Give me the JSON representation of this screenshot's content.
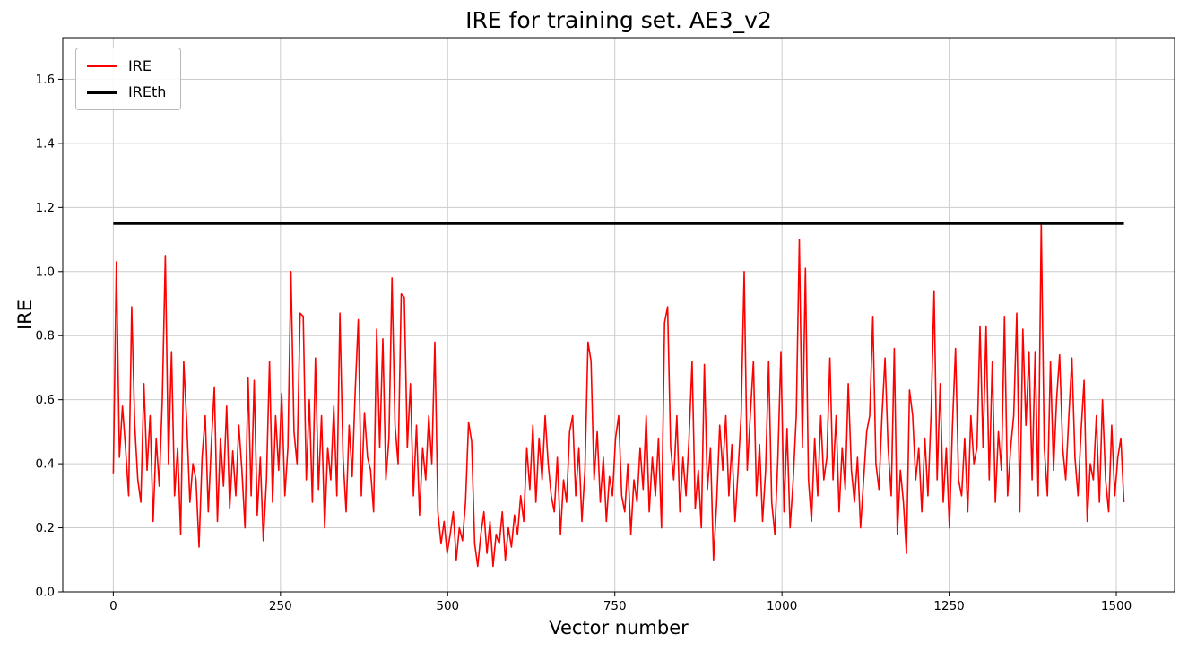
{
  "figure": {
    "background": "#ffffff"
  },
  "chart_data": {
    "type": "line",
    "title": "IRE for training set. AE3_v2",
    "xlabel": "Vector number",
    "ylabel": "IRE",
    "xlim": [
      -75.6,
      1587.1
    ],
    "ylim": [
      0,
      1.73
    ],
    "xticks": [
      0,
      250,
      500,
      750,
      1000,
      1250,
      1500
    ],
    "yticks": [
      0.0,
      0.2,
      0.4,
      0.6,
      0.8,
      1.0,
      1.2,
      1.4,
      1.6
    ],
    "grid": true,
    "grid_color": "#cccccc",
    "legend_position": "upper left",
    "series": [
      {
        "name": "IRE",
        "kind": "line",
        "color": "#ff0000",
        "linewidth": 1.6,
        "x_start": 0,
        "x_step": 4.58,
        "values": [
          0.37,
          1.03,
          0.42,
          0.58,
          0.45,
          0.3,
          0.89,
          0.52,
          0.35,
          0.28,
          0.65,
          0.38,
          0.55,
          0.22,
          0.48,
          0.33,
          0.6,
          1.05,
          0.4,
          0.75,
          0.3,
          0.45,
          0.18,
          0.72,
          0.52,
          0.28,
          0.4,
          0.35,
          0.14,
          0.42,
          0.55,
          0.25,
          0.46,
          0.64,
          0.22,
          0.48,
          0.33,
          0.58,
          0.26,
          0.44,
          0.3,
          0.52,
          0.38,
          0.2,
          0.67,
          0.3,
          0.66,
          0.24,
          0.42,
          0.16,
          0.35,
          0.72,
          0.28,
          0.55,
          0.38,
          0.62,
          0.3,
          0.45,
          1.0,
          0.5,
          0.4,
          0.87,
          0.86,
          0.35,
          0.6,
          0.28,
          0.73,
          0.32,
          0.55,
          0.2,
          0.45,
          0.35,
          0.58,
          0.3,
          0.87,
          0.42,
          0.25,
          0.52,
          0.36,
          0.63,
          0.85,
          0.3,
          0.56,
          0.42,
          0.38,
          0.25,
          0.82,
          0.45,
          0.79,
          0.35,
          0.48,
          0.98,
          0.52,
          0.4,
          0.93,
          0.92,
          0.45,
          0.65,
          0.3,
          0.52,
          0.24,
          0.45,
          0.35,
          0.55,
          0.4,
          0.78,
          0.25,
          0.15,
          0.22,
          0.12,
          0.18,
          0.25,
          0.1,
          0.2,
          0.16,
          0.28,
          0.53,
          0.47,
          0.15,
          0.08,
          0.18,
          0.25,
          0.12,
          0.22,
          0.08,
          0.18,
          0.15,
          0.25,
          0.1,
          0.2,
          0.14,
          0.24,
          0.18,
          0.3,
          0.22,
          0.45,
          0.32,
          0.52,
          0.28,
          0.48,
          0.35,
          0.55,
          0.4,
          0.3,
          0.25,
          0.42,
          0.18,
          0.35,
          0.28,
          0.5,
          0.55,
          0.3,
          0.45,
          0.22,
          0.38,
          0.78,
          0.72,
          0.35,
          0.5,
          0.28,
          0.42,
          0.22,
          0.36,
          0.3,
          0.48,
          0.55,
          0.3,
          0.25,
          0.4,
          0.18,
          0.35,
          0.28,
          0.45,
          0.32,
          0.55,
          0.25,
          0.42,
          0.3,
          0.48,
          0.2,
          0.84,
          0.89,
          0.45,
          0.35,
          0.55,
          0.25,
          0.42,
          0.3,
          0.48,
          0.72,
          0.26,
          0.38,
          0.2,
          0.71,
          0.32,
          0.45,
          0.1,
          0.28,
          0.52,
          0.38,
          0.55,
          0.3,
          0.46,
          0.22,
          0.38,
          0.55,
          1.0,
          0.38,
          0.55,
          0.72,
          0.3,
          0.46,
          0.22,
          0.38,
          0.72,
          0.28,
          0.18,
          0.42,
          0.75,
          0.25,
          0.51,
          0.2,
          0.35,
          0.55,
          1.1,
          0.45,
          1.01,
          0.35,
          0.22,
          0.48,
          0.3,
          0.55,
          0.35,
          0.42,
          0.73,
          0.35,
          0.55,
          0.25,
          0.45,
          0.32,
          0.65,
          0.38,
          0.28,
          0.42,
          0.2,
          0.35,
          0.5,
          0.55,
          0.86,
          0.4,
          0.32,
          0.55,
          0.73,
          0.45,
          0.3,
          0.76,
          0.18,
          0.38,
          0.28,
          0.12,
          0.63,
          0.55,
          0.35,
          0.45,
          0.25,
          0.48,
          0.3,
          0.55,
          0.94,
          0.35,
          0.65,
          0.28,
          0.45,
          0.2,
          0.52,
          0.76,
          0.35,
          0.3,
          0.48,
          0.25,
          0.55,
          0.4,
          0.45,
          0.83,
          0.45,
          0.83,
          0.35,
          0.72,
          0.28,
          0.5,
          0.38,
          0.86,
          0.3,
          0.45,
          0.55,
          0.87,
          0.25,
          0.82,
          0.52,
          0.75,
          0.35,
          0.75,
          0.3,
          1.15,
          0.45,
          0.3,
          0.72,
          0.38,
          0.6,
          0.74,
          0.45,
          0.35,
          0.55,
          0.73,
          0.42,
          0.3,
          0.5,
          0.66,
          0.22,
          0.4,
          0.35,
          0.55,
          0.28,
          0.6,
          0.35,
          0.25,
          0.52,
          0.3,
          0.42,
          0.48,
          0.28
        ]
      },
      {
        "name": "IREth",
        "kind": "hline",
        "color": "#000000",
        "linewidth": 3,
        "y": 1.15,
        "x_span": [
          0,
          1511.4
        ]
      }
    ]
  }
}
